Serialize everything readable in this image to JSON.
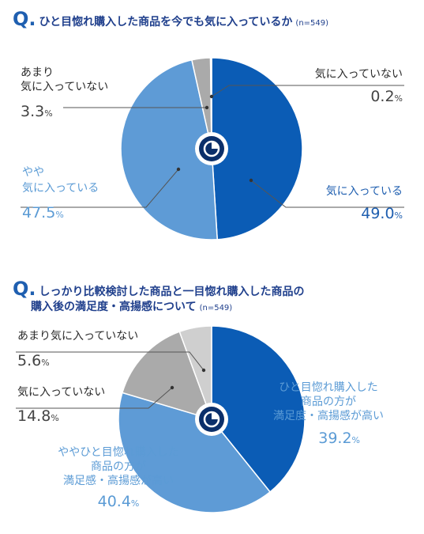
{
  "q_mark": "Q.",
  "colors": {
    "blue_dark": "#0b5cb5",
    "blue_light": "#5e9bd6",
    "grey": "#aaaaaa",
    "grey_light": "#cfcfcf"
  },
  "q1": {
    "title": "ひと目惚れ購入した商品を今でも気に入っているか",
    "n": "(n=549)"
  },
  "q2": {
    "title_line1": "しっかり比較検討した商品と一目惚れ購入した商品の",
    "title_line2": "購入後の満足度・高揚感について",
    "n": "(n=549)"
  },
  "chart_data": [
    {
      "type": "pie",
      "title": "ひと目惚れ購入した商品を今でも気に入っているか",
      "slices": [
        {
          "label": "気に入っている",
          "value": 49.0,
          "value_text": "49.0",
          "unit": "%",
          "color": "#0b5cb5"
        },
        {
          "label": "やや\n気に入っている",
          "value": 47.5,
          "value_text": "47.5",
          "unit": "%",
          "color": "#5e9bd6"
        },
        {
          "label": "あまり\n気に入っていない",
          "value": 3.3,
          "value_text": "3.3",
          "unit": "%",
          "color": "#aaaaaa"
        },
        {
          "label": "気に入っていない",
          "value": 0.2,
          "value_text": "0.2",
          "unit": "%",
          "color": "#8c8c8c"
        }
      ]
    },
    {
      "type": "pie",
      "title": "しっかり比較検討した商品と一目惚れ購入した商品の購入後の満足度・高揚感について",
      "slices": [
        {
          "label": "ひと目惚れ購入した\n商品の方が\n満足度・高揚感が高い",
          "value": 39.2,
          "value_text": "39.2",
          "unit": "%",
          "color": "#0b5cb5"
        },
        {
          "label": "ややひと目惚れ購入した\n商品の方が\n満足感・高揚感が高い",
          "value": 40.4,
          "value_text": "40.4",
          "unit": "%",
          "color": "#5e9bd6"
        },
        {
          "label": "気に入っていない",
          "value": 14.8,
          "value_text": "14.8",
          "unit": "%",
          "color": "#aaaaaa"
        },
        {
          "label": "あまり気に入っていない",
          "value": 5.6,
          "value_text": "5.6",
          "unit": "%",
          "color": "#cfcfcf"
        }
      ]
    }
  ]
}
